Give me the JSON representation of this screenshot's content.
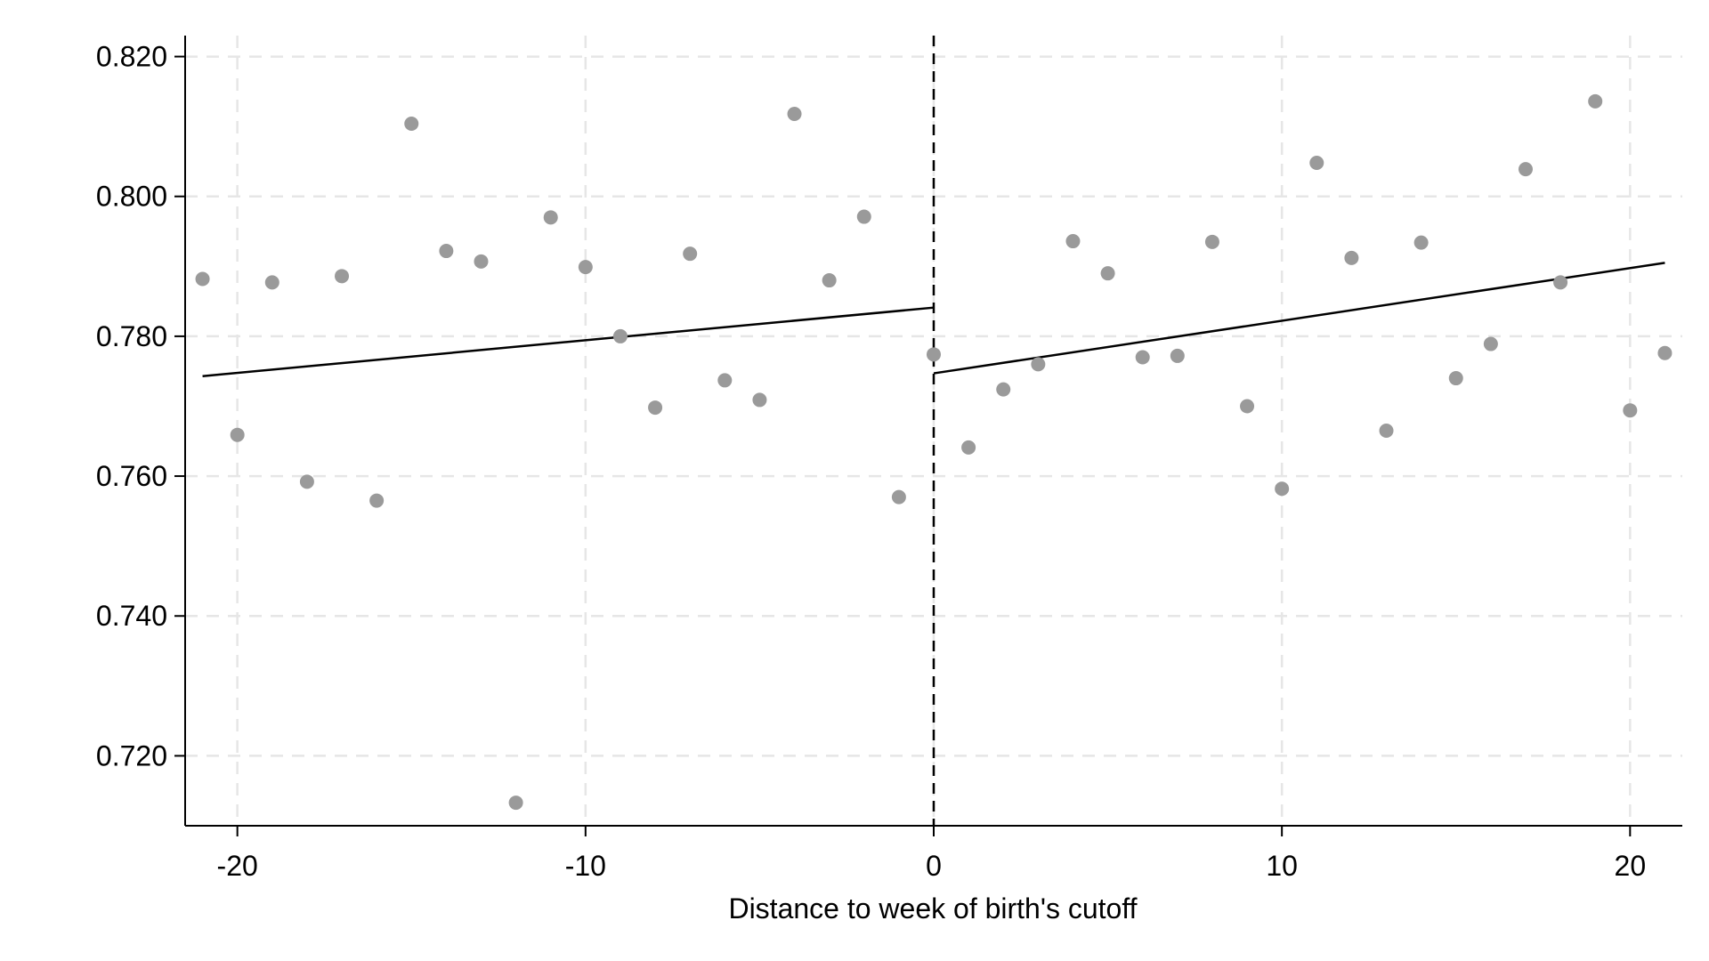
{
  "chart_data": {
    "type": "scatter",
    "title": "",
    "xlabel": "Distance to week of birth's cutoff",
    "ylabel": "",
    "xlim": [
      -21.5,
      21.5
    ],
    "ylim": [
      0.71,
      0.823
    ],
    "x_ticks": [
      -20,
      -10,
      0,
      10,
      20
    ],
    "x_tick_labels": [
      "-20",
      "-10",
      "0",
      "10",
      "20"
    ],
    "y_ticks": [
      0.72,
      0.74,
      0.76,
      0.78,
      0.8,
      0.82
    ],
    "y_tick_labels": [
      "0.720",
      "0.740",
      "0.760",
      "0.780",
      "0.800",
      "0.820"
    ],
    "grid": true,
    "cutoff_x": 0,
    "colors": {
      "points": "#9a9a9a",
      "fit_line": "#000000",
      "grid": "#e6e6e6",
      "cutoff": "#000000"
    },
    "points": [
      {
        "x": -21,
        "y": 0.7882
      },
      {
        "x": -20,
        "y": 0.7659
      },
      {
        "x": -19,
        "y": 0.7877
      },
      {
        "x": -18,
        "y": 0.7592
      },
      {
        "x": -17,
        "y": 0.7886
      },
      {
        "x": -16,
        "y": 0.7565
      },
      {
        "x": -15,
        "y": 0.8104
      },
      {
        "x": -14,
        "y": 0.7922
      },
      {
        "x": -13,
        "y": 0.7907
      },
      {
        "x": -12,
        "y": 0.7133
      },
      {
        "x": -11,
        "y": 0.797
      },
      {
        "x": -10,
        "y": 0.7899
      },
      {
        "x": -9,
        "y": 0.78
      },
      {
        "x": -8,
        "y": 0.7698
      },
      {
        "x": -7,
        "y": 0.7918
      },
      {
        "x": -6,
        "y": 0.7737
      },
      {
        "x": -5,
        "y": 0.7709
      },
      {
        "x": -4,
        "y": 0.8118
      },
      {
        "x": -3,
        "y": 0.788
      },
      {
        "x": -2,
        "y": 0.7971
      },
      {
        "x": -1,
        "y": 0.757
      },
      {
        "x": 0,
        "y": 0.7774
      },
      {
        "x": 1,
        "y": 0.7641
      },
      {
        "x": 2,
        "y": 0.7724
      },
      {
        "x": 3,
        "y": 0.776
      },
      {
        "x": 4,
        "y": 0.7936
      },
      {
        "x": 5,
        "y": 0.789
      },
      {
        "x": 6,
        "y": 0.777
      },
      {
        "x": 7,
        "y": 0.7772
      },
      {
        "x": 8,
        "y": 0.7935
      },
      {
        "x": 9,
        "y": 0.77
      },
      {
        "x": 10,
        "y": 0.7582
      },
      {
        "x": 11,
        "y": 0.8048
      },
      {
        "x": 12,
        "y": 0.7912
      },
      {
        "x": 13,
        "y": 0.7665
      },
      {
        "x": 14,
        "y": 0.7934
      },
      {
        "x": 15,
        "y": 0.774
      },
      {
        "x": 16,
        "y": 0.7789
      },
      {
        "x": 17,
        "y": 0.8039
      },
      {
        "x": 18,
        "y": 0.7877
      },
      {
        "x": 19,
        "y": 0.8136
      },
      {
        "x": 20,
        "y": 0.7694
      },
      {
        "x": 21,
        "y": 0.7776
      }
    ],
    "fit_lines": [
      {
        "x": [
          -21,
          0
        ],
        "y": [
          0.7743,
          0.7841
        ]
      },
      {
        "x": [
          0,
          21
        ],
        "y": [
          0.7747,
          0.7905
        ]
      }
    ]
  }
}
